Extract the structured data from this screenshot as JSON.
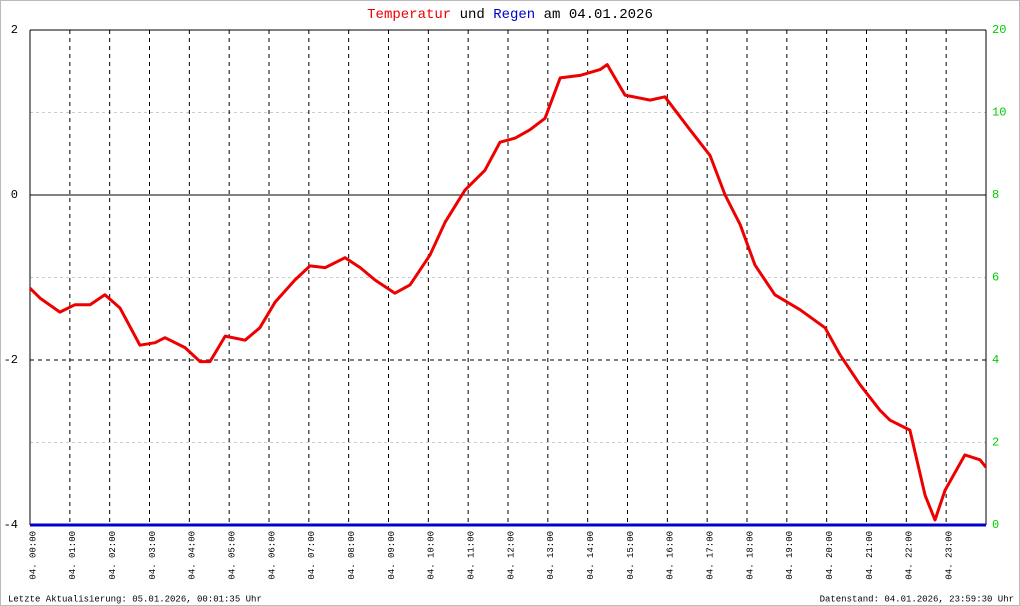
{
  "chart_data": {
    "type": "line",
    "title_connector": "und",
    "title_date": "am 04.01.2026",
    "xlim": [
      0,
      24
    ],
    "xticks": [
      {
        "value": 0,
        "label": "04. 00:00"
      },
      {
        "value": 1,
        "label": "04. 01:00"
      },
      {
        "value": 2,
        "label": "04. 02:00"
      },
      {
        "value": 3,
        "label": "04. 03:00"
      },
      {
        "value": 4,
        "label": "04. 04:00"
      },
      {
        "value": 5,
        "label": "04. 05:00"
      },
      {
        "value": 6,
        "label": "04. 06:00"
      },
      {
        "value": 7,
        "label": "04. 07:00"
      },
      {
        "value": 8,
        "label": "04. 08:00"
      },
      {
        "value": 9,
        "label": "04. 09:00"
      },
      {
        "value": 10,
        "label": "04. 10:00"
      },
      {
        "value": 11,
        "label": "04. 11:00"
      },
      {
        "value": 12,
        "label": "04. 12:00"
      },
      {
        "value": 13,
        "label": "04. 13:00"
      },
      {
        "value": 14,
        "label": "04. 14:00"
      },
      {
        "value": 15,
        "label": "04. 15:00"
      },
      {
        "value": 16,
        "label": "04. 16:00"
      },
      {
        "value": 17,
        "label": "04. 17:00"
      },
      {
        "value": 18,
        "label": "04. 18:00"
      },
      {
        "value": 19,
        "label": "04. 19:00"
      },
      {
        "value": 20,
        "label": "04. 20:00"
      },
      {
        "value": 21,
        "label": "04. 21:00"
      },
      {
        "value": 22,
        "label": "04. 22:00"
      },
      {
        "value": 23,
        "label": "04. 23:00"
      }
    ],
    "ylim": [
      -4,
      2
    ],
    "yticks": [
      -4,
      -2,
      0,
      2
    ],
    "yminorticks": [
      -3,
      -1,
      1
    ],
    "y2lim": [
      0,
      20
    ],
    "y2ticks": [
      0,
      2,
      4,
      6,
      8,
      10,
      20
    ],
    "y2color": "#00cc00",
    "series": [
      {
        "name": "Temperatur",
        "color": "#ee0000",
        "x": [
          0,
          0.25,
          0.75,
          1.13,
          1.51,
          1.88,
          2.26,
          2.76,
          3.14,
          3.39,
          3.89,
          4.27,
          4.52,
          4.9,
          5.4,
          5.77,
          6.15,
          6.65,
          7.03,
          7.41,
          7.91,
          8.29,
          8.66,
          9.16,
          9.54,
          10.04,
          10.42,
          10.92,
          11.42,
          11.8,
          12.18,
          12.55,
          12.93,
          13.31,
          13.81,
          14.31,
          14.49,
          14.94,
          15.57,
          15.94,
          16.57,
          17.07,
          17.45,
          17.83,
          18.2,
          18.7,
          19.33,
          19.96,
          20.34,
          20.84,
          21.34,
          21.59,
          22.09,
          22.47,
          22.72,
          22.97,
          23.47,
          23.85,
          24
        ],
        "values": [
          -1.13,
          -1.25,
          -1.42,
          -1.33,
          -1.33,
          -1.21,
          -1.37,
          -1.82,
          -1.79,
          -1.73,
          -1.85,
          -2.02,
          -2.02,
          -1.71,
          -1.76,
          -1.61,
          -1.3,
          -1.03,
          -0.86,
          -0.88,
          -0.76,
          -0.88,
          -1.03,
          -1.19,
          -1.09,
          -0.73,
          -0.33,
          0.06,
          0.3,
          0.64,
          0.69,
          0.79,
          0.93,
          1.42,
          1.45,
          1.52,
          1.58,
          1.21,
          1.15,
          1.19,
          0.79,
          0.48,
          0,
          -0.36,
          -0.85,
          -1.21,
          -1.39,
          -1.61,
          -1.94,
          -2.3,
          -2.61,
          -2.73,
          -2.85,
          -3.64,
          -3.94,
          -3.58,
          -3.15,
          -3.21,
          -3.3
        ]
      },
      {
        "name": "Regen",
        "color": "#0000cc",
        "axis": "y2",
        "x": [
          0,
          24
        ],
        "values": [
          0,
          0
        ]
      }
    ],
    "footer_left": "Letzte Aktualisierung: 05.01.2026, 00:01:35 Uhr",
    "footer_right": "Datenstand: 04.01.2026, 23:59:30 Uhr"
  }
}
